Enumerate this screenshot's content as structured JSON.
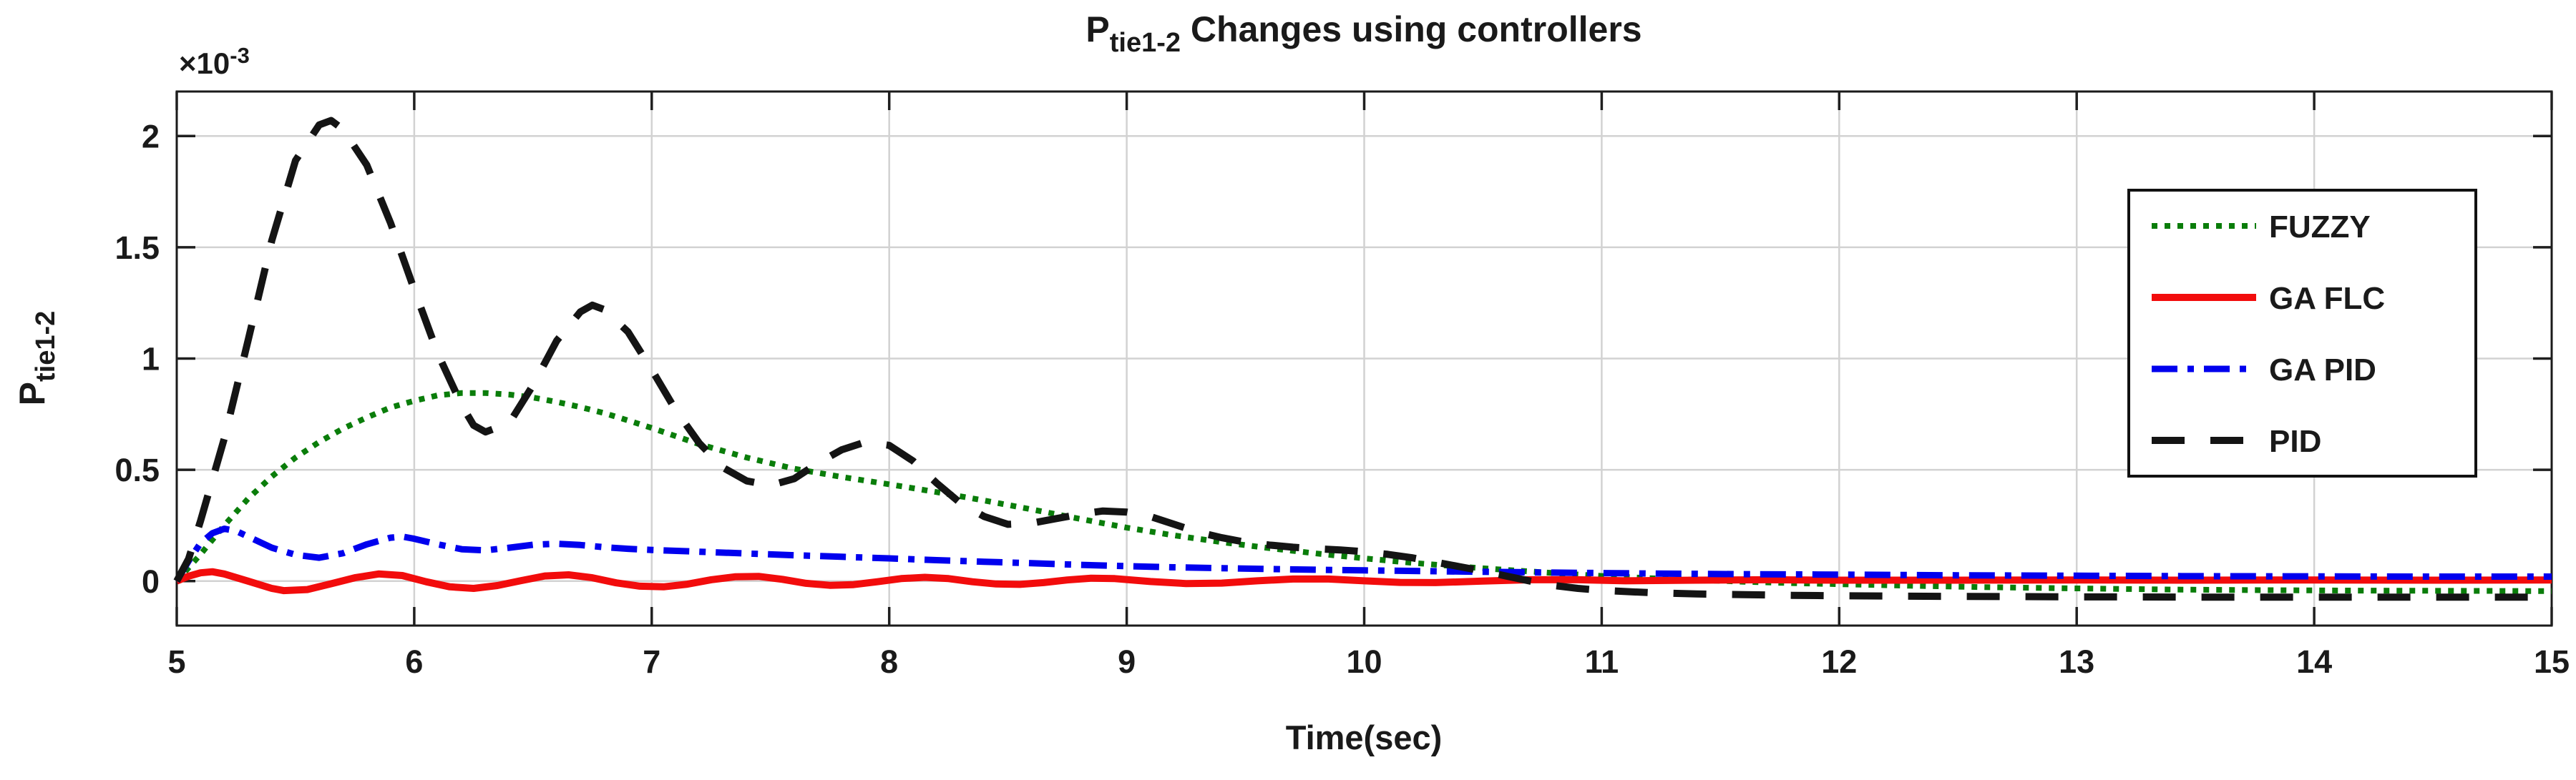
{
  "figure": {
    "title": {
      "prefix": "P",
      "subscript": "tie1-2",
      "suffix": " Changes using controllers"
    },
    "y_offset": {
      "base": "×10",
      "exponent": "-3"
    }
  },
  "axes": {
    "x": {
      "label": "Time(sec)",
      "range": [
        5,
        15
      ],
      "ticks": [
        5,
        6,
        7,
        8,
        9,
        10,
        11,
        12,
        13,
        14,
        15
      ],
      "tick_labels": [
        "5",
        "6",
        "7",
        "8",
        "9",
        "10",
        "11",
        "12",
        "13",
        "14",
        "15"
      ]
    },
    "y": {
      "label": {
        "prefix": "P",
        "subscript": "tie1-2"
      },
      "range": [
        -0.2,
        2.2
      ],
      "ticks": [
        0,
        0.5,
        1,
        1.5,
        2
      ],
      "tick_labels": [
        "0",
        "0.5",
        "1",
        "1.5",
        "2"
      ]
    }
  },
  "colors": {
    "background": "#ffffff",
    "axis_box": "#1a1a1a",
    "grid": "#d2d2d2",
    "tick": "#1f1f1f"
  },
  "chart_data": {
    "type": "line",
    "title": "P_tie1-2 Changes using controllers",
    "xlabel": "Time(sec)",
    "ylabel": "P_tie1-2",
    "y_unit_multiplier": "1e-3",
    "xlim": [
      5,
      15
    ],
    "ylim": [
      -0.2,
      2.2
    ],
    "grid": true,
    "legend_position": "upper right",
    "series": [
      {
        "name": "FUZZY",
        "color": "#0a7d0a",
        "line_style": "dotted",
        "points": [
          [
            5,
            0
          ],
          [
            5.1,
            0.12
          ],
          [
            5.2,
            0.25
          ],
          [
            5.3,
            0.37
          ],
          [
            5.4,
            0.47
          ],
          [
            5.5,
            0.555
          ],
          [
            5.6,
            0.625
          ],
          [
            5.7,
            0.685
          ],
          [
            5.8,
            0.735
          ],
          [
            5.9,
            0.78
          ],
          [
            6,
            0.81
          ],
          [
            6.1,
            0.835
          ],
          [
            6.2,
            0.845
          ],
          [
            6.3,
            0.845
          ],
          [
            6.4,
            0.838
          ],
          [
            6.5,
            0.825
          ],
          [
            6.6,
            0.805
          ],
          [
            6.7,
            0.782
          ],
          [
            6.8,
            0.755
          ],
          [
            6.9,
            0.722
          ],
          [
            7,
            0.688
          ],
          [
            7.2,
            0.615
          ],
          [
            7.4,
            0.555
          ],
          [
            7.6,
            0.505
          ],
          [
            7.8,
            0.468
          ],
          [
            8,
            0.435
          ],
          [
            8.2,
            0.4
          ],
          [
            8.4,
            0.362
          ],
          [
            8.6,
            0.322
          ],
          [
            8.8,
            0.28
          ],
          [
            9,
            0.24
          ],
          [
            9.2,
            0.205
          ],
          [
            9.4,
            0.175
          ],
          [
            9.6,
            0.148
          ],
          [
            9.8,
            0.124
          ],
          [
            10,
            0.102
          ],
          [
            10.2,
            0.082
          ],
          [
            10.4,
            0.065
          ],
          [
            10.6,
            0.05
          ],
          [
            10.8,
            0.036
          ],
          [
            11,
            0.023
          ],
          [
            11.2,
            0.013
          ],
          [
            11.4,
            0.005
          ],
          [
            11.6,
            -0.003
          ],
          [
            11.8,
            -0.009
          ],
          [
            12,
            -0.014
          ],
          [
            12.3,
            -0.021
          ],
          [
            12.6,
            -0.027
          ],
          [
            13,
            -0.033
          ],
          [
            13.4,
            -0.038
          ],
          [
            13.8,
            -0.041
          ],
          [
            14.2,
            -0.043
          ],
          [
            14.6,
            -0.044
          ],
          [
            15,
            -0.045
          ]
        ]
      },
      {
        "name": "GA FLC",
        "color": "#f20c0c",
        "line_style": "solid",
        "points": [
          [
            5,
            0
          ],
          [
            5.05,
            0.022
          ],
          [
            5.1,
            0.037
          ],
          [
            5.15,
            0.042
          ],
          [
            5.2,
            0.032
          ],
          [
            5.3,
            0
          ],
          [
            5.4,
            -0.033
          ],
          [
            5.45,
            -0.043
          ],
          [
            5.55,
            -0.038
          ],
          [
            5.65,
            -0.012
          ],
          [
            5.75,
            0.015
          ],
          [
            5.85,
            0.032
          ],
          [
            5.95,
            0.025
          ],
          [
            6.05,
            -0.003
          ],
          [
            6.15,
            -0.026
          ],
          [
            6.25,
            -0.033
          ],
          [
            6.35,
            -0.02
          ],
          [
            6.45,
            0.002
          ],
          [
            6.55,
            0.023
          ],
          [
            6.65,
            0.028
          ],
          [
            6.75,
            0.015
          ],
          [
            6.85,
            -0.008
          ],
          [
            6.95,
            -0.023
          ],
          [
            7.05,
            -0.026
          ],
          [
            7.15,
            -0.014
          ],
          [
            7.25,
            0.006
          ],
          [
            7.35,
            0.019
          ],
          [
            7.45,
            0.021
          ],
          [
            7.55,
            0.008
          ],
          [
            7.65,
            -0.01
          ],
          [
            7.75,
            -0.019
          ],
          [
            7.85,
            -0.016
          ],
          [
            7.95,
            -0.003
          ],
          [
            8.05,
            0.011
          ],
          [
            8.15,
            0.017
          ],
          [
            8.25,
            0.011
          ],
          [
            8.35,
            -0.003
          ],
          [
            8.45,
            -0.013
          ],
          [
            8.55,
            -0.015
          ],
          [
            8.65,
            -0.007
          ],
          [
            8.75,
            0.005
          ],
          [
            8.85,
            0.013
          ],
          [
            8.95,
            0.011
          ],
          [
            9.1,
            -0.002
          ],
          [
            9.25,
            -0.011
          ],
          [
            9.4,
            -0.009
          ],
          [
            9.55,
            0.001
          ],
          [
            9.7,
            0.009
          ],
          [
            9.85,
            0.009
          ],
          [
            10,
            0.001
          ],
          [
            10.15,
            -0.006
          ],
          [
            10.3,
            -0.007
          ],
          [
            10.5,
            0
          ],
          [
            10.7,
            0.006
          ],
          [
            10.9,
            0.006
          ],
          [
            11.1,
            0.001
          ],
          [
            11.4,
            0.004
          ],
          [
            11.7,
            0.006
          ],
          [
            12,
            0.004
          ],
          [
            12.5,
            0.004
          ],
          [
            13,
            0.005
          ],
          [
            13.5,
            0.004
          ],
          [
            14,
            0.005
          ],
          [
            14.5,
            0.004
          ],
          [
            15,
            0.005
          ]
        ]
      },
      {
        "name": "GA PID",
        "color": "#0000ee",
        "line_style": "dashdot",
        "points": [
          [
            5,
            0
          ],
          [
            5.05,
            0.09
          ],
          [
            5.1,
            0.17
          ],
          [
            5.15,
            0.215
          ],
          [
            5.2,
            0.235
          ],
          [
            5.25,
            0.225
          ],
          [
            5.3,
            0.2
          ],
          [
            5.4,
            0.15
          ],
          [
            5.5,
            0.118
          ],
          [
            5.6,
            0.105
          ],
          [
            5.7,
            0.125
          ],
          [
            5.8,
            0.165
          ],
          [
            5.9,
            0.195
          ],
          [
            5.95,
            0.2
          ],
          [
            6,
            0.19
          ],
          [
            6.1,
            0.165
          ],
          [
            6.2,
            0.143
          ],
          [
            6.3,
            0.138
          ],
          [
            6.4,
            0.15
          ],
          [
            6.5,
            0.163
          ],
          [
            6.6,
            0.168
          ],
          [
            6.7,
            0.162
          ],
          [
            6.8,
            0.152
          ],
          [
            6.9,
            0.145
          ],
          [
            7,
            0.14
          ],
          [
            7.2,
            0.132
          ],
          [
            7.4,
            0.124
          ],
          [
            7.6,
            0.116
          ],
          [
            7.8,
            0.109
          ],
          [
            8,
            0.102
          ],
          [
            8.2,
            0.094
          ],
          [
            8.4,
            0.087
          ],
          [
            8.6,
            0.08
          ],
          [
            8.8,
            0.073
          ],
          [
            9,
            0.067
          ],
          [
            9.2,
            0.062
          ],
          [
            9.4,
            0.058
          ],
          [
            9.6,
            0.054
          ],
          [
            9.8,
            0.051
          ],
          [
            10,
            0.048
          ],
          [
            10.4,
            0.043
          ],
          [
            10.8,
            0.038
          ],
          [
            11.2,
            0.034
          ],
          [
            11.6,
            0.031
          ],
          [
            12,
            0.029
          ],
          [
            12.5,
            0.026
          ],
          [
            13,
            0.024
          ],
          [
            13.5,
            0.022
          ],
          [
            14,
            0.021
          ],
          [
            14.5,
            0.02
          ],
          [
            15,
            0.02
          ]
        ]
      },
      {
        "name": "PID",
        "color": "#141414",
        "line_style": "dashed",
        "points": [
          [
            5,
            0
          ],
          [
            5.05,
            0.1
          ],
          [
            5.1,
            0.27
          ],
          [
            5.2,
            0.64
          ],
          [
            5.3,
            1.08
          ],
          [
            5.4,
            1.53
          ],
          [
            5.5,
            1.89
          ],
          [
            5.6,
            2.05
          ],
          [
            5.65,
            2.07
          ],
          [
            5.7,
            2.03
          ],
          [
            5.8,
            1.87
          ],
          [
            5.9,
            1.61
          ],
          [
            6,
            1.31
          ],
          [
            6.1,
            1.02
          ],
          [
            6.2,
            0.79
          ],
          [
            6.25,
            0.7
          ],
          [
            6.3,
            0.67
          ],
          [
            6.4,
            0.71
          ],
          [
            6.5,
            0.88
          ],
          [
            6.6,
            1.08
          ],
          [
            6.7,
            1.21
          ],
          [
            6.75,
            1.24
          ],
          [
            6.8,
            1.22
          ],
          [
            6.9,
            1.12
          ],
          [
            7,
            0.95
          ],
          [
            7.1,
            0.77
          ],
          [
            7.2,
            0.62
          ],
          [
            7.3,
            0.51
          ],
          [
            7.4,
            0.45
          ],
          [
            7.5,
            0.43
          ],
          [
            7.6,
            0.46
          ],
          [
            7.7,
            0.53
          ],
          [
            7.8,
            0.59
          ],
          [
            7.9,
            0.625
          ],
          [
            8,
            0.61
          ],
          [
            8.1,
            0.54
          ],
          [
            8.2,
            0.44
          ],
          [
            8.3,
            0.35
          ],
          [
            8.4,
            0.29
          ],
          [
            8.5,
            0.255
          ],
          [
            8.6,
            0.26
          ],
          [
            8.7,
            0.28
          ],
          [
            8.8,
            0.3
          ],
          [
            8.9,
            0.315
          ],
          [
            9,
            0.31
          ],
          [
            9.1,
            0.29
          ],
          [
            9.2,
            0.255
          ],
          [
            9.3,
            0.22
          ],
          [
            9.4,
            0.195
          ],
          [
            9.5,
            0.175
          ],
          [
            9.6,
            0.162
          ],
          [
            9.7,
            0.152
          ],
          [
            9.8,
            0.145
          ],
          [
            9.9,
            0.14
          ],
          [
            10,
            0.132
          ],
          [
            10.1,
            0.12
          ],
          [
            10.2,
            0.105
          ],
          [
            10.3,
            0.085
          ],
          [
            10.4,
            0.065
          ],
          [
            10.5,
            0.045
          ],
          [
            10.6,
            0.022
          ],
          [
            10.7,
            0
          ],
          [
            10.8,
            -0.02
          ],
          [
            10.9,
            -0.033
          ],
          [
            11,
            -0.042
          ],
          [
            11.2,
            -0.052
          ],
          [
            11.4,
            -0.058
          ],
          [
            11.6,
            -0.061
          ],
          [
            11.8,
            -0.064
          ],
          [
            12,
            -0.066
          ],
          [
            12.5,
            -0.069
          ],
          [
            13,
            -0.071
          ],
          [
            13.5,
            -0.072
          ],
          [
            14,
            -0.072
          ],
          [
            14.5,
            -0.072
          ],
          [
            15,
            -0.072
          ]
        ]
      }
    ]
  }
}
